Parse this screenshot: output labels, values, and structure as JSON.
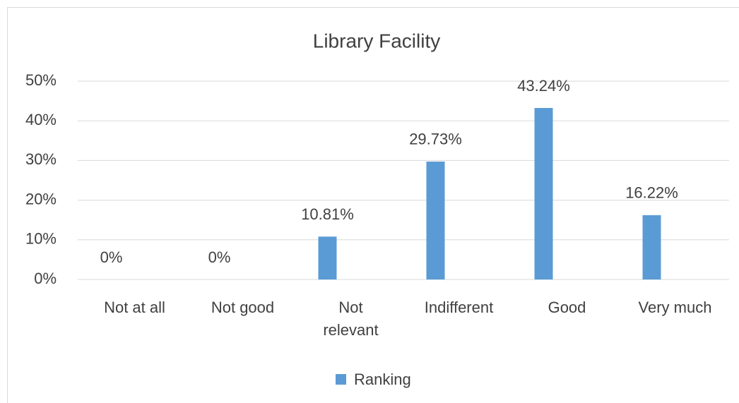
{
  "chart_data": {
    "type": "bar",
    "title": "Library Facility",
    "categories": [
      "Not at all",
      "Not good",
      "Not relevant",
      "Indifferent",
      "Good",
      "Very much"
    ],
    "series": [
      {
        "name": "Ranking",
        "color": "#5b9bd5",
        "values": [
          0,
          0,
          10.81,
          29.73,
          43.24,
          16.22
        ],
        "value_labels": [
          "0%",
          "0%",
          "10.81%",
          "29.73%",
          "43.24%",
          "16.22%"
        ]
      }
    ],
    "ylim": [
      0,
      50
    ],
    "yticks": [
      {
        "value": 0,
        "label": "0%"
      },
      {
        "value": 10,
        "label": "10%"
      },
      {
        "value": 20,
        "label": "20%"
      },
      {
        "value": 30,
        "label": "30%"
      },
      {
        "value": 40,
        "label": "40%"
      },
      {
        "value": 50,
        "label": "50%"
      }
    ],
    "grid": true,
    "legend": "bottom"
  }
}
